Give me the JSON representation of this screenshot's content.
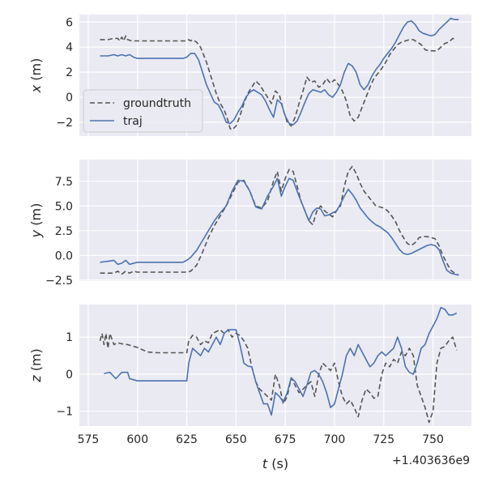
{
  "chart_data": [
    {
      "type": "line",
      "ylabel_symbol": "x",
      "ylabel_unit": "(m)",
      "ylim": [
        -3.1,
        6.6
      ],
      "yticks": [
        6,
        4,
        2,
        0,
        -2
      ],
      "yticklabels": [
        "6",
        "4",
        "2",
        "0",
        "−2"
      ],
      "grid": true,
      "legend": {
        "placement": "center-left",
        "entries": [
          {
            "label": "groundtruth",
            "style": "dashed",
            "color": "#555555"
          },
          {
            "label": "traj",
            "style": "solid",
            "color": "#4c72b0"
          }
        ]
      },
      "series": [
        {
          "name": "groundtruth",
          "x": [
            581,
            585,
            588,
            590,
            591,
            592,
            593,
            594,
            595,
            597,
            600,
            610,
            620,
            625,
            626,
            627,
            628,
            629,
            630,
            632,
            635,
            638,
            640,
            642,
            644,
            646,
            647,
            648,
            650,
            652,
            654,
            656,
            658,
            660,
            662,
            664,
            666,
            668,
            670,
            672,
            674,
            676,
            678,
            680,
            682,
            684,
            686,
            688,
            690,
            692,
            694,
            696,
            698,
            700,
            702,
            704,
            706,
            708,
            710,
            712,
            714,
            716,
            718,
            720,
            722,
            724,
            726,
            728,
            730,
            732,
            734,
            736,
            738,
            740,
            742,
            744,
            746,
            748,
            750,
            752,
            754,
            756,
            758,
            760,
            762
          ],
          "y": [
            4.6,
            4.6,
            4.7,
            4.7,
            4.5,
            4.8,
            4.5,
            4.9,
            4.6,
            4.5,
            4.5,
            4.5,
            4.5,
            4.5,
            4.6,
            4.5,
            4.6,
            4.5,
            4.4,
            4.0,
            2.8,
            1.3,
            0.3,
            -0.5,
            -1.0,
            -1.9,
            -2.5,
            -2.6,
            -2.3,
            -1.5,
            -0.5,
            0.3,
            0.8,
            1.3,
            1.0,
            0.5,
            0.0,
            -0.5,
            0.5,
            0.2,
            -1.0,
            -2.0,
            -2.3,
            -1.6,
            -0.5,
            0.5,
            1.6,
            1.2,
            1.3,
            0.8,
            1.0,
            1.5,
            1.1,
            1.4,
            1.0,
            0.5,
            -0.3,
            -1.5,
            -1.9,
            -1.6,
            -0.8,
            0.0,
            0.8,
            1.5,
            1.9,
            2.3,
            2.8,
            3.4,
            3.8,
            4.2,
            4.4,
            4.5,
            4.6,
            4.6,
            4.4,
            4.2,
            3.8,
            3.7,
            3.7,
            3.7,
            4.0,
            4.3,
            4.4,
            4.7,
            4.6
          ]
        },
        {
          "name": "traj",
          "x": [
            581,
            585,
            588,
            590,
            592,
            594,
            596,
            598,
            600,
            605,
            610,
            615,
            620,
            623,
            625,
            627,
            629,
            631,
            633,
            635,
            637,
            639,
            641,
            643,
            645,
            647,
            649,
            651,
            653,
            655,
            657,
            659,
            661,
            663,
            665,
            667,
            669,
            671,
            673,
            675,
            677,
            679,
            681,
            683,
            685,
            687,
            689,
            691,
            693,
            695,
            697,
            699,
            701,
            703,
            705,
            707,
            709,
            711,
            713,
            715,
            717,
            719,
            721,
            723,
            725,
            727,
            729,
            731,
            733,
            735,
            737,
            739,
            741,
            743,
            745,
            747,
            749,
            751,
            753,
            755,
            757,
            759,
            761,
            763
          ],
          "y": [
            3.3,
            3.3,
            3.4,
            3.3,
            3.4,
            3.3,
            3.4,
            3.2,
            3.1,
            3.1,
            3.1,
            3.1,
            3.1,
            3.1,
            3.2,
            3.5,
            3.5,
            3.0,
            2.0,
            1.0,
            0.3,
            -0.4,
            -0.6,
            -1.2,
            -2.0,
            -2.1,
            -1.8,
            -1.2,
            -0.7,
            0.0,
            0.4,
            0.6,
            0.4,
            0.2,
            -0.3,
            -1.0,
            -1.6,
            -0.2,
            -0.5,
            -1.5,
            -2.1,
            -2.2,
            -1.9,
            -1.2,
            -0.4,
            0.3,
            0.6,
            0.5,
            0.4,
            0.6,
            0.2,
            0.0,
            0.4,
            1.0,
            2.0,
            2.7,
            2.5,
            2.0,
            1.0,
            0.6,
            1.0,
            1.7,
            2.2,
            2.6,
            3.1,
            3.5,
            3.9,
            4.4,
            5.0,
            5.6,
            6.0,
            6.1,
            5.8,
            5.3,
            5.1,
            5.0,
            4.9,
            5.0,
            5.4,
            5.7,
            6.0,
            6.3,
            6.2,
            6.2
          ]
        }
      ]
    },
    {
      "type": "line",
      "ylabel_symbol": "y",
      "ylabel_unit": "(m)",
      "ylim": [
        -2.6,
        9.7
      ],
      "yticks": [
        7.5,
        5.0,
        2.5,
        0.0,
        -2.5
      ],
      "yticklabels": [
        "7.5",
        "5.0",
        "2.5",
        "0.0",
        "−2.5"
      ],
      "grid": true,
      "series": [
        {
          "name": "groundtruth",
          "x": [
            581,
            585,
            588,
            590,
            592,
            594,
            596,
            598,
            600,
            610,
            620,
            625,
            627,
            630,
            633,
            636,
            639,
            642,
            645,
            648,
            651,
            654,
            657,
            660,
            663,
            666,
            669,
            671,
            673,
            675,
            677,
            679,
            681,
            683,
            685,
            687,
            689,
            691,
            693,
            695,
            697,
            699,
            701,
            703,
            705,
            707,
            709,
            711,
            713,
            715,
            717,
            719,
            721,
            723,
            725,
            727,
            729,
            731,
            733,
            735,
            737,
            739,
            741,
            743,
            745,
            747,
            749,
            751,
            753,
            755,
            757,
            759,
            761,
            763
          ],
          "y": [
            -1.8,
            -1.8,
            -1.8,
            -1.6,
            -1.9,
            -1.6,
            -1.8,
            -1.6,
            -1.7,
            -1.7,
            -1.7,
            -1.7,
            -1.6,
            -1.0,
            0.3,
            1.8,
            3.0,
            4.0,
            5.0,
            6.2,
            7.4,
            7.6,
            6.5,
            5.0,
            4.8,
            5.5,
            7.5,
            8.5,
            6.5,
            7.8,
            8.7,
            8.5,
            7.0,
            5.5,
            4.5,
            3.5,
            3.1,
            4.5,
            5.0,
            4.5,
            4.2,
            3.9,
            4.5,
            5.0,
            7.0,
            8.5,
            9.0,
            8.3,
            7.3,
            6.5,
            6.0,
            5.5,
            5.0,
            4.9,
            4.8,
            4.5,
            4.0,
            3.4,
            2.5,
            1.8,
            1.2,
            1.0,
            1.3,
            1.8,
            1.9,
            1.9,
            1.8,
            1.7,
            1.0,
            0.0,
            -0.8,
            -1.5,
            -1.8,
            -2.0
          ]
        },
        {
          "name": "traj",
          "x": [
            581,
            585,
            588,
            590,
            592,
            594,
            596,
            598,
            600,
            610,
            620,
            623,
            625,
            627,
            630,
            633,
            636,
            639,
            642,
            645,
            648,
            651,
            654,
            657,
            660,
            663,
            666,
            669,
            671,
            673,
            675,
            677,
            679,
            681,
            683,
            685,
            687,
            689,
            691,
            693,
            695,
            697,
            699,
            701,
            703,
            705,
            707,
            709,
            711,
            713,
            715,
            717,
            719,
            721,
            723,
            725,
            727,
            729,
            731,
            733,
            735,
            737,
            739,
            741,
            743,
            745,
            747,
            749,
            751,
            753,
            755,
            757,
            759,
            761,
            763
          ],
          "y": [
            -0.7,
            -0.6,
            -0.5,
            -0.9,
            -0.8,
            -0.5,
            -0.9,
            -0.8,
            -0.7,
            -0.7,
            -0.7,
            -0.7,
            -0.5,
            -0.2,
            0.5,
            1.5,
            2.5,
            3.5,
            4.3,
            5.0,
            6.5,
            7.6,
            7.5,
            6.5,
            4.9,
            4.7,
            6.0,
            7.0,
            7.8,
            6.0,
            7.0,
            7.8,
            7.6,
            6.5,
            5.5,
            4.5,
            3.5,
            4.4,
            4.8,
            4.7,
            4.0,
            4.1,
            4.3,
            4.5,
            5.2,
            6.0,
            6.7,
            6.2,
            5.6,
            4.8,
            4.3,
            3.8,
            3.4,
            3.1,
            2.9,
            2.6,
            2.3,
            1.8,
            1.2,
            0.6,
            0.2,
            0.1,
            0.2,
            0.4,
            0.6,
            0.8,
            1.0,
            1.1,
            1.0,
            0.6,
            -0.5,
            -1.5,
            -1.8,
            -1.9,
            -2.0
          ]
        }
      ]
    },
    {
      "type": "line",
      "xlabel_symbol": "t",
      "xlabel_unit": "(s)",
      "x_offset_label": "+1.403636e9",
      "xlim": [
        570.5,
        769.5
      ],
      "xticks": [
        575,
        600,
        625,
        650,
        675,
        700,
        725,
        750
      ],
      "xticklabels": [
        "575",
        "600",
        "625",
        "650",
        "675",
        "700",
        "725",
        "750"
      ],
      "ylabel_symbol": "z",
      "ylabel_unit": "(m)",
      "ylim": [
        -1.4,
        1.88
      ],
      "yticks": [
        1,
        0,
        -1
      ],
      "yticklabels": [
        "1",
        "0",
        "−1"
      ],
      "grid": true,
      "series": [
        {
          "name": "groundtruth",
          "x": [
            581,
            582,
            583,
            584,
            585,
            586,
            588,
            590,
            592,
            595,
            598,
            600,
            605,
            610,
            615,
            620,
            625,
            626,
            628,
            630,
            632,
            634,
            636,
            638,
            640,
            642,
            644,
            646,
            648,
            650,
            652,
            654,
            656,
            658,
            660,
            662,
            664,
            666,
            668,
            670,
            672,
            674,
            676,
            678,
            680,
            682,
            684,
            686,
            688,
            690,
            692,
            694,
            696,
            698,
            700,
            702,
            704,
            706,
            708,
            710,
            712,
            714,
            716,
            718,
            720,
            722,
            724,
            726,
            728,
            730,
            732,
            734,
            736,
            738,
            740,
            742,
            744,
            746,
            748,
            750,
            752,
            754,
            756,
            758,
            760,
            762
          ],
          "y": [
            0.9,
            1.1,
            0.8,
            1.1,
            0.7,
            1.1,
            0.8,
            0.85,
            0.82,
            0.8,
            0.75,
            0.72,
            0.6,
            0.58,
            0.58,
            0.58,
            0.58,
            0.9,
            1.05,
            1.0,
            0.8,
            0.9,
            0.85,
            1.1,
            1.15,
            1.2,
            1.1,
            1.2,
            1.0,
            1.1,
            1.05,
            0.9,
            0.7,
            0.2,
            -0.2,
            -0.4,
            -0.5,
            -0.6,
            -0.7,
            0.0,
            -0.3,
            -0.8,
            -0.6,
            -0.1,
            -0.3,
            -0.5,
            -0.4,
            -0.3,
            -0.2,
            -0.6,
            0.0,
            0.3,
            0.2,
            0.1,
            0.3,
            -0.2,
            -0.6,
            -0.8,
            -0.7,
            -0.9,
            -1.15,
            -0.7,
            -0.4,
            -0.5,
            -0.65,
            -0.6,
            0.0,
            0.3,
            0.2,
            0.4,
            0.3,
            0.6,
            0.5,
            0.7,
            0.5,
            -0.3,
            -0.6,
            -0.9,
            -1.3,
            -1.0,
            0.3,
            0.7,
            0.75,
            0.9,
            1.0,
            0.65
          ]
        },
        {
          "name": "traj",
          "x": [
            583,
            586,
            589,
            592,
            595,
            596,
            598,
            600,
            605,
            610,
            615,
            620,
            625,
            626,
            628,
            630,
            632,
            634,
            636,
            638,
            640,
            642,
            644,
            646,
            648,
            650,
            652,
            654,
            656,
            658,
            660,
            662,
            664,
            666,
            668,
            670,
            672,
            674,
            676,
            678,
            680,
            682,
            684,
            686,
            688,
            690,
            692,
            694,
            696,
            698,
            700,
            702,
            704,
            706,
            708,
            710,
            712,
            714,
            716,
            718,
            720,
            722,
            724,
            726,
            728,
            730,
            732,
            734,
            736,
            738,
            740,
            742,
            744,
            746,
            748,
            750,
            752,
            754,
            756,
            758,
            760,
            762
          ],
          "y": [
            0.02,
            0.05,
            -0.12,
            0.05,
            0.05,
            -0.12,
            -0.15,
            -0.18,
            -0.18,
            -0.18,
            -0.18,
            -0.18,
            -0.18,
            0.3,
            0.7,
            0.6,
            0.5,
            0.7,
            0.6,
            0.8,
            1.0,
            0.8,
            1.1,
            1.2,
            1.2,
            1.2,
            0.8,
            0.3,
            0.22,
            0.2,
            -0.2,
            -0.5,
            -0.8,
            -0.8,
            -1.1,
            -0.5,
            -0.6,
            -0.75,
            -0.5,
            -0.1,
            -0.2,
            -0.4,
            -0.6,
            -0.3,
            0.05,
            0.1,
            0.0,
            -0.2,
            -0.5,
            -0.9,
            -0.8,
            -0.4,
            0.0,
            0.5,
            0.7,
            0.5,
            0.8,
            0.6,
            0.4,
            0.2,
            0.3,
            0.5,
            0.6,
            0.5,
            0.6,
            0.7,
            1.0,
            0.7,
            0.2,
            0.05,
            0.0,
            0.3,
            0.7,
            0.8,
            1.1,
            1.3,
            1.5,
            1.8,
            1.75,
            1.6,
            1.6,
            1.65
          ]
        }
      ]
    }
  ]
}
